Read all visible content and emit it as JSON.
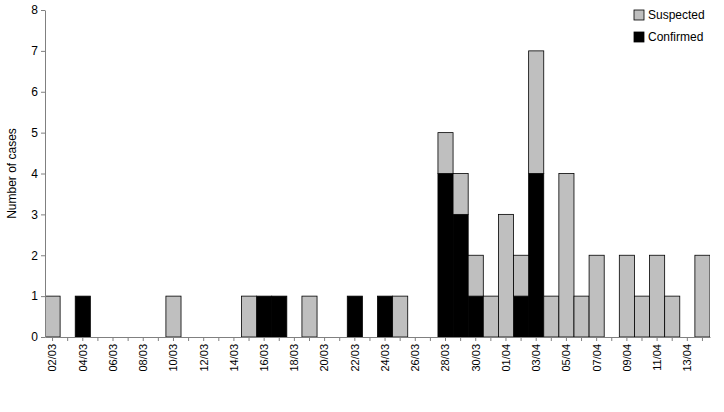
{
  "chart_data": {
    "type": "bar",
    "stacked": true,
    "legend": "top-right",
    "y_label": "Number of cases",
    "categories": [
      "02/03",
      null,
      "04/03",
      null,
      "06/03",
      null,
      "08/03",
      null,
      "10/03",
      null,
      "12/03",
      null,
      "14/03",
      null,
      "16/03",
      null,
      "18/03",
      null,
      "20/03",
      null,
      "22/03",
      null,
      "24/03",
      null,
      "26/03",
      null,
      "28/03",
      null,
      "30/03",
      null,
      "01/04",
      null,
      "03/04",
      null,
      "05/04",
      null,
      "07/04",
      null,
      "09/04",
      null,
      "11/04",
      null,
      "13/04",
      null
    ],
    "series": [
      {
        "name": "Confirmed",
        "color": "#000000",
        "values": [
          0,
          0,
          1,
          0,
          0,
          0,
          0,
          0,
          0,
          0,
          0,
          0,
          0,
          0,
          1,
          1,
          0,
          0,
          0,
          0,
          1,
          0,
          1,
          0,
          0,
          0,
          4,
          3,
          1,
          0,
          0,
          1,
          4,
          0,
          0,
          0,
          0,
          0,
          0,
          0,
          0,
          0,
          0,
          0
        ]
      },
      {
        "name": "Suspected",
        "color": "#bfbfbf",
        "values": [
          1,
          0,
          0,
          0,
          0,
          0,
          0,
          0,
          1,
          0,
          0,
          0,
          0,
          1,
          0,
          0,
          0,
          1,
          0,
          0,
          0,
          0,
          0,
          1,
          0,
          0,
          1,
          1,
          1,
          1,
          3,
          1,
          3,
          1,
          4,
          1,
          2,
          0,
          2,
          1,
          2,
          1,
          0,
          2
        ]
      }
    ],
    "ylim": [
      0,
      8
    ],
    "yticks": [
      0,
      1,
      2,
      3,
      4,
      5,
      6,
      7,
      8
    ],
    "grid": false
  }
}
